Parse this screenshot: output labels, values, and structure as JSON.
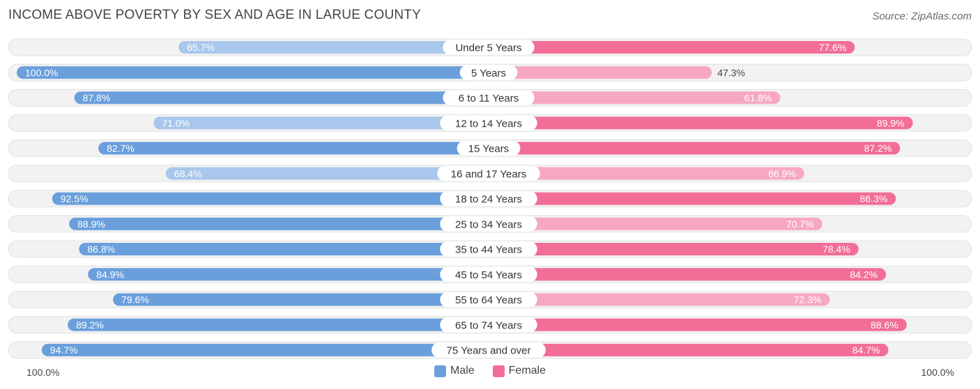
{
  "title": "INCOME ABOVE POVERTY BY SEX AND AGE IN LARUE COUNTY",
  "source": "Source: ZipAtlas.com",
  "colors": {
    "male_strong": "#6a9fdc",
    "male_light": "#a9c7ec",
    "female_strong": "#f26e97",
    "female_light": "#f7a8c0",
    "track": "#eeeeee"
  },
  "chart_data": {
    "type": "bar",
    "orientation": "horizontal-diverging",
    "title": "INCOME ABOVE POVERTY BY SEX AND AGE IN LARUE COUNTY",
    "categories": [
      "Under 5 Years",
      "5 Years",
      "6 to 11 Years",
      "12 to 14 Years",
      "15 Years",
      "16 and 17 Years",
      "18 to 24 Years",
      "25 to 34 Years",
      "35 to 44 Years",
      "45 to 54 Years",
      "55 to 64 Years",
      "65 to 74 Years",
      "75 Years and over"
    ],
    "series": [
      {
        "name": "Male",
        "values": [
          65.7,
          100.0,
          87.8,
          71.0,
          82.7,
          68.4,
          92.5,
          88.9,
          86.8,
          84.9,
          79.6,
          89.2,
          94.7
        ]
      },
      {
        "name": "Female",
        "values": [
          77.6,
          47.3,
          61.8,
          89.9,
          87.2,
          66.9,
          86.3,
          70.7,
          78.4,
          84.2,
          72.3,
          88.6,
          84.7
        ]
      }
    ],
    "value_labels": {
      "male": [
        "65.7%",
        "100.0%",
        "87.8%",
        "71.0%",
        "82.7%",
        "68.4%",
        "92.5%",
        "88.9%",
        "86.8%",
        "84.9%",
        "79.6%",
        "89.2%",
        "94.7%"
      ],
      "female": [
        "77.6%",
        "47.3%",
        "61.8%",
        "89.9%",
        "87.2%",
        "66.9%",
        "86.3%",
        "70.7%",
        "78.4%",
        "84.2%",
        "72.3%",
        "88.6%",
        "84.7%"
      ]
    },
    "xlim": [
      0,
      100
    ],
    "axis_left_label": "100.0%",
    "axis_right_label": "100.0%",
    "legend": [
      "Male",
      "Female"
    ],
    "legend_position": "bottom-center"
  }
}
